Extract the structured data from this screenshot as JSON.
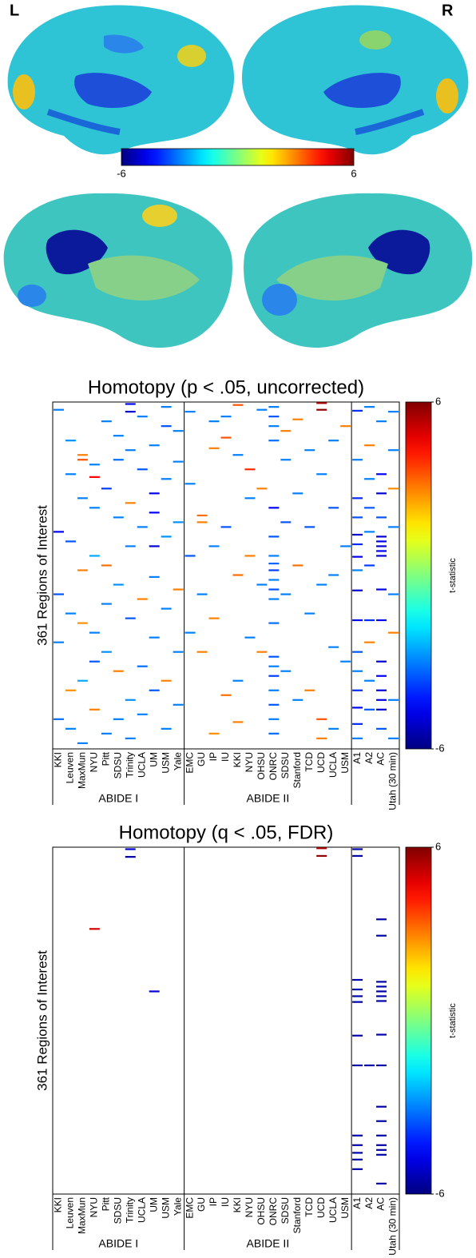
{
  "brain": {
    "hemispheres": [
      "L",
      "R"
    ],
    "clim": [
      -6,
      6
    ],
    "ticks": [
      -6,
      6
    ]
  },
  "chart_data": [
    {
      "type": "heatmap",
      "title": "Homotopy (p < .05, uncorrected)",
      "ylabel": "361 Regions of Interest",
      "ylim": [
        0,
        361
      ],
      "clim": [
        -6,
        6
      ],
      "cticks": [
        -6,
        6
      ],
      "colorbar_label": "t-statistic",
      "colormap": "jet",
      "groups": [
        {
          "name": "ABIDE I",
          "columns": [
            "KKI",
            "Leuven",
            "MaxMun",
            "NYU",
            "Pitt",
            "SDSU",
            "Trinity",
            "UCLA",
            "UM",
            "USM",
            "Yale"
          ]
        },
        {
          "name": "ABIDE II",
          "columns": [
            "EMC",
            "GU",
            "IP",
            "IU",
            "KKI",
            "NYU",
            "OHSU",
            "ONRC",
            "SDSU",
            "Stanford",
            "TCD",
            "UCD",
            "UCLA",
            "USM"
          ]
        },
        {
          "columns": [
            "A1",
            "A2",
            "AC",
            "Utah (30 min)"
          ]
        }
      ],
      "cells": [
        [
          0,
          8,
          -3
        ],
        [
          0,
          135,
          -4.5
        ],
        [
          0,
          200,
          -3.5
        ],
        [
          0,
          250,
          -3
        ],
        [
          0,
          330,
          -3.2
        ],
        [
          1,
          40,
          -2.8
        ],
        [
          1,
          75,
          -3
        ],
        [
          1,
          145,
          -3.5
        ],
        [
          1,
          220,
          -3
        ],
        [
          1,
          300,
          2.8
        ],
        [
          1,
          340,
          -3
        ],
        [
          2,
          55,
          3
        ],
        [
          2,
          60,
          3.5
        ],
        [
          2,
          100,
          -3
        ],
        [
          2,
          175,
          3
        ],
        [
          2,
          230,
          2.8
        ],
        [
          2,
          290,
          -2.5
        ],
        [
          2,
          355,
          -3
        ],
        [
          3,
          65,
          -3
        ],
        [
          3,
          78,
          4.5
        ],
        [
          3,
          110,
          -3
        ],
        [
          3,
          160,
          -2.5
        ],
        [
          3,
          240,
          -3
        ],
        [
          3,
          270,
          -3.5
        ],
        [
          3,
          320,
          3
        ],
        [
          4,
          20,
          -3
        ],
        [
          4,
          90,
          -3.8
        ],
        [
          4,
          170,
          3.2
        ],
        [
          4,
          210,
          -3
        ],
        [
          4,
          260,
          -2.8
        ],
        [
          4,
          345,
          -3
        ],
        [
          5,
          35,
          -3
        ],
        [
          5,
          60,
          -3.2
        ],
        [
          5,
          120,
          -3
        ],
        [
          5,
          190,
          -2.8
        ],
        [
          5,
          280,
          3
        ],
        [
          5,
          330,
          -3
        ],
        [
          6,
          2,
          -4.5
        ],
        [
          6,
          10,
          -5
        ],
        [
          6,
          50,
          -3
        ],
        [
          6,
          105,
          3
        ],
        [
          6,
          150,
          -3
        ],
        [
          6,
          225,
          -3.5
        ],
        [
          6,
          310,
          -2.8
        ],
        [
          6,
          350,
          -3
        ],
        [
          7,
          15,
          -3
        ],
        [
          7,
          70,
          -3.5
        ],
        [
          7,
          130,
          -3
        ],
        [
          7,
          205,
          3
        ],
        [
          7,
          275,
          -3.2
        ],
        [
          7,
          325,
          -3
        ],
        [
          8,
          45,
          -3
        ],
        [
          8,
          95,
          -4.8
        ],
        [
          8,
          115,
          -4.5
        ],
        [
          8,
          150,
          -5
        ],
        [
          8,
          182,
          -3
        ],
        [
          8,
          245,
          -3
        ],
        [
          8,
          300,
          -3.5
        ],
        [
          9,
          5,
          -3
        ],
        [
          9,
          25,
          -3.5
        ],
        [
          9,
          80,
          -3
        ],
        [
          9,
          140,
          -2.8
        ],
        [
          9,
          215,
          -3
        ],
        [
          9,
          290,
          3
        ],
        [
          9,
          340,
          -3
        ],
        [
          10,
          30,
          -3
        ],
        [
          10,
          62,
          -3
        ],
        [
          10,
          125,
          -2.8
        ],
        [
          10,
          195,
          3
        ],
        [
          10,
          260,
          -3
        ],
        [
          10,
          315,
          -3
        ],
        [
          11,
          10,
          -3
        ],
        [
          11,
          85,
          -3
        ],
        [
          11,
          160,
          -3.5
        ],
        [
          11,
          240,
          -3
        ],
        [
          12,
          118,
          3.2
        ],
        [
          12,
          125,
          3
        ],
        [
          12,
          200,
          -3
        ],
        [
          12,
          260,
          3
        ],
        [
          13,
          20,
          -3
        ],
        [
          13,
          48,
          3
        ],
        [
          13,
          150,
          -3
        ],
        [
          13,
          225,
          3
        ],
        [
          13,
          345,
          2.8
        ],
        [
          14,
          15,
          -3
        ],
        [
          14,
          37,
          3.5
        ],
        [
          14,
          130,
          -3.5
        ],
        [
          14,
          305,
          3.2
        ],
        [
          15,
          3,
          3.5
        ],
        [
          15,
          55,
          -3
        ],
        [
          15,
          180,
          3.2
        ],
        [
          15,
          290,
          -3
        ],
        [
          15,
          333,
          3
        ],
        [
          16,
          70,
          4
        ],
        [
          16,
          100,
          -3
        ],
        [
          16,
          160,
          3
        ],
        [
          16,
          245,
          -3
        ],
        [
          17,
          8,
          -3
        ],
        [
          17,
          90,
          3
        ],
        [
          17,
          190,
          -3
        ],
        [
          17,
          260,
          3
        ],
        [
          18,
          5,
          -3
        ],
        [
          18,
          15,
          -3.5
        ],
        [
          18,
          25,
          -3
        ],
        [
          18,
          40,
          -3.2
        ],
        [
          18,
          110,
          -4.5
        ],
        [
          18,
          140,
          -3.5
        ],
        [
          18,
          160,
          -3
        ],
        [
          18,
          168,
          -3.3
        ],
        [
          18,
          175,
          -3.8
        ],
        [
          18,
          185,
          -3
        ],
        [
          18,
          195,
          -3.5
        ],
        [
          18,
          205,
          -3
        ],
        [
          18,
          230,
          -3.2
        ],
        [
          18,
          265,
          -3.5
        ],
        [
          18,
          275,
          -3
        ],
        [
          18,
          285,
          -3.8
        ],
        [
          18,
          300,
          -3
        ],
        [
          18,
          315,
          -3.5
        ],
        [
          18,
          330,
          -3
        ],
        [
          18,
          345,
          -3.2
        ],
        [
          19,
          30,
          3
        ],
        [
          19,
          60,
          -3
        ],
        [
          19,
          125,
          -3.5
        ],
        [
          19,
          200,
          -3
        ],
        [
          19,
          280,
          -3
        ],
        [
          20,
          18,
          3
        ],
        [
          20,
          95,
          -3
        ],
        [
          20,
          170,
          3.2
        ],
        [
          20,
          310,
          -3
        ],
        [
          21,
          50,
          -3
        ],
        [
          21,
          130,
          -3.5
        ],
        [
          21,
          220,
          -3
        ],
        [
          21,
          300,
          3
        ],
        [
          22,
          1,
          5.5
        ],
        [
          22,
          8,
          5.8
        ],
        [
          22,
          75,
          -3
        ],
        [
          22,
          190,
          -3
        ],
        [
          22,
          330,
          3.5
        ],
        [
          22,
          350,
          3
        ],
        [
          23,
          40,
          -3
        ],
        [
          23,
          110,
          -3.5
        ],
        [
          23,
          180,
          -3
        ],
        [
          23,
          255,
          -3
        ],
        [
          23,
          340,
          -3
        ],
        [
          24,
          25,
          3
        ],
        [
          24,
          150,
          -3
        ],
        [
          24,
          270,
          -3
        ],
        [
          25,
          9,
          -4
        ],
        [
          25,
          60,
          -3
        ],
        [
          25,
          100,
          -4
        ],
        [
          25,
          120,
          -3.5
        ],
        [
          25,
          138,
          -5
        ],
        [
          25,
          148,
          -4
        ],
        [
          25,
          161,
          -4.5
        ],
        [
          25,
          175,
          -3
        ],
        [
          25,
          196,
          -5
        ],
        [
          25,
          227,
          -4.5
        ],
        [
          25,
          260,
          -3.5
        ],
        [
          25,
          280,
          -3
        ],
        [
          25,
          300,
          -4
        ],
        [
          25,
          318,
          -4.5
        ],
        [
          25,
          335,
          -4
        ],
        [
          25,
          350,
          -3
        ],
        [
          26,
          5,
          -3
        ],
        [
          26,
          45,
          3
        ],
        [
          26,
          80,
          -3
        ],
        [
          26,
          110,
          -3.5
        ],
        [
          26,
          135,
          -3
        ],
        [
          26,
          170,
          -3.8
        ],
        [
          26,
          227,
          -4
        ],
        [
          26,
          250,
          3
        ],
        [
          26,
          290,
          -3
        ],
        [
          26,
          320,
          -3.5
        ],
        [
          27,
          20,
          -3
        ],
        [
          27,
          75,
          -4.5
        ],
        [
          27,
          95,
          -5
        ],
        [
          27,
          120,
          -3.5
        ],
        [
          27,
          140,
          -5
        ],
        [
          27,
          145,
          -4.8
        ],
        [
          27,
          150,
          -5
        ],
        [
          27,
          155,
          -4.5
        ],
        [
          27,
          160,
          -5
        ],
        [
          27,
          195,
          -4.8
        ],
        [
          27,
          227,
          -4.5
        ],
        [
          27,
          270,
          -5
        ],
        [
          27,
          285,
          -4.5
        ],
        [
          27,
          300,
          -5
        ],
        [
          27,
          310,
          -4.8
        ],
        [
          27,
          320,
          -5
        ],
        [
          27,
          340,
          -3.5
        ],
        [
          28,
          10,
          -3
        ],
        [
          28,
          50,
          -3
        ],
        [
          28,
          90,
          2.8
        ],
        [
          28,
          130,
          -3
        ],
        [
          28,
          200,
          -3
        ],
        [
          28,
          240,
          3
        ],
        [
          28,
          310,
          -3
        ],
        [
          28,
          350,
          -3
        ]
      ]
    },
    {
      "type": "heatmap",
      "title": "Homotopy (q < .05, FDR)",
      "ylabel": "361 Regions of Interest",
      "ylim": [
        0,
        361
      ],
      "clim": [
        -6,
        6
      ],
      "cticks": [
        -6,
        6
      ],
      "colorbar_label": "t-statistic",
      "colormap": "jet",
      "groups": [
        {
          "name": "ABIDE I",
          "columns": [
            "KKI",
            "Leuven",
            "MaxMun",
            "NYU",
            "Pitt",
            "SDSU",
            "Trinity",
            "UCLA",
            "UM",
            "USM",
            "Yale"
          ]
        },
        {
          "name": "ABIDE II",
          "columns": [
            "EMC",
            "GU",
            "IP",
            "IU",
            "KKI",
            "NYU",
            "OHSU",
            "ONRC",
            "SDSU",
            "Stanford",
            "TCD",
            "UCD",
            "UCLA",
            "USM"
          ]
        },
        {
          "columns": [
            "A1",
            "A2",
            "AC",
            "Utah (30 min)"
          ]
        }
      ],
      "cells": [
        [
          6,
          2,
          -5
        ],
        [
          6,
          10,
          -5.5
        ],
        [
          3,
          85,
          5
        ],
        [
          8,
          150,
          -5
        ],
        [
          22,
          1,
          5.5
        ],
        [
          22,
          9,
          5.8
        ],
        [
          25,
          2,
          -5.5
        ],
        [
          25,
          9,
          -5.5
        ],
        [
          25,
          138,
          -5.5
        ],
        [
          25,
          148,
          -5.5
        ],
        [
          25,
          155,
          -5.5
        ],
        [
          25,
          161,
          -5.5
        ],
        [
          25,
          196,
          -5.5
        ],
        [
          25,
          227,
          -5.5
        ],
        [
          26,
          227,
          -5.5
        ],
        [
          27,
          227,
          -5.5
        ],
        [
          25,
          300,
          -5.5
        ],
        [
          25,
          310,
          -5.5
        ],
        [
          25,
          318,
          -5.5
        ],
        [
          25,
          325,
          -5.5
        ],
        [
          25,
          335,
          -5.5
        ],
        [
          27,
          75,
          -5.5
        ],
        [
          27,
          92,
          -5.5
        ],
        [
          27,
          140,
          -5.5
        ],
        [
          27,
          145,
          -5.5
        ],
        [
          27,
          150,
          -5.5
        ],
        [
          27,
          155,
          -5.5
        ],
        [
          27,
          160,
          -5.5
        ],
        [
          27,
          195,
          -5.5
        ],
        [
          27,
          270,
          -5.5
        ],
        [
          27,
          285,
          -5.5
        ],
        [
          27,
          300,
          -5.5
        ],
        [
          27,
          310,
          -5.5
        ],
        [
          27,
          315,
          -5.5
        ],
        [
          27,
          320,
          -5.5
        ],
        [
          27,
          350,
          -5.5
        ]
      ]
    }
  ]
}
